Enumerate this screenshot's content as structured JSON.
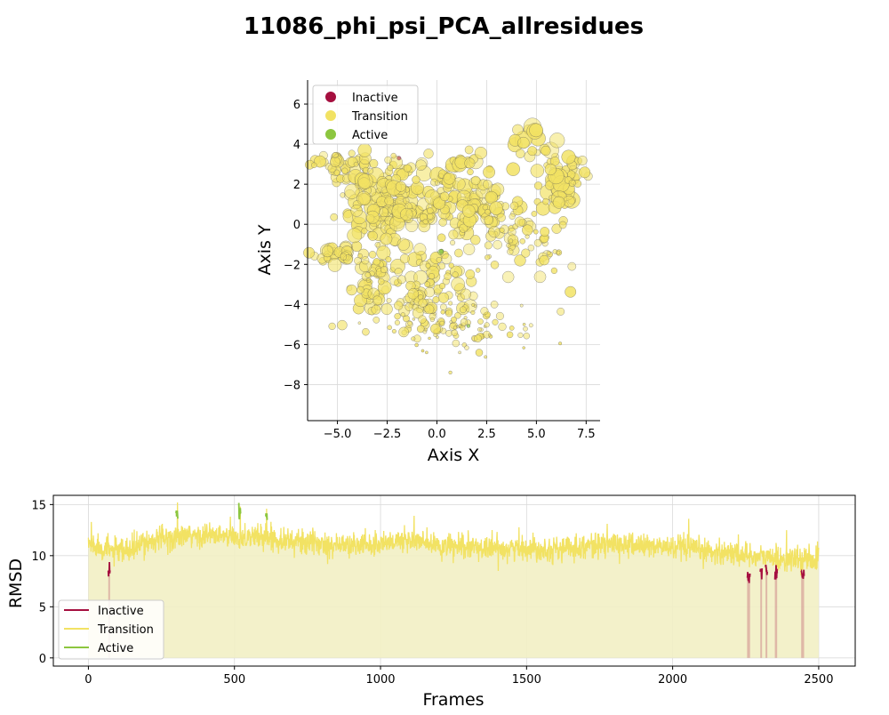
{
  "title": "11086_phi_psi_PCA_allresidues",
  "colors": {
    "inactive": "#a50f3f",
    "transition": "#f2e263",
    "active": "#8cc63f",
    "fill": "#f2efc4"
  },
  "chart_data": [
    {
      "type": "scatter",
      "xlabel": "Axis X",
      "ylabel": "Axis Y",
      "xlim": [
        -6.5,
        8.2
      ],
      "ylim": [
        -9.8,
        7.2
      ],
      "xticks": [
        -5.0,
        -2.5,
        0.0,
        2.5,
        5.0,
        7.5
      ],
      "xtick_labels": [
        "−5.0",
        "−2.5",
        "0.0",
        "2.5",
        "5.0",
        "7.5"
      ],
      "yticks": [
        -8,
        -6,
        -4,
        -2,
        0,
        2,
        4,
        6
      ],
      "ytick_labels": [
        "−8",
        "−6",
        "−4",
        "−2",
        "0",
        "2",
        "4",
        "6"
      ],
      "grid": true,
      "legend": "top-left",
      "legend_entries": [
        "Inactive",
        "Transition",
        "Active"
      ],
      "clusters": [
        {
          "label": "Transition",
          "cx": -4.8,
          "cy": 3.0,
          "sx": 0.8,
          "sy": 0.35,
          "n": 40,
          "size": 7
        },
        {
          "label": "Transition",
          "cx": -3.0,
          "cy": 1.2,
          "sx": 1.0,
          "sy": 1.0,
          "n": 90,
          "size": 8
        },
        {
          "label": "Transition",
          "cx": -1.5,
          "cy": 0.5,
          "sx": 1.2,
          "sy": 1.3,
          "n": 90,
          "size": 8
        },
        {
          "label": "Transition",
          "cx": -5.2,
          "cy": -1.4,
          "sx": 0.6,
          "sy": 0.3,
          "n": 30,
          "size": 7
        },
        {
          "label": "Transition",
          "cx": -3.4,
          "cy": -3.0,
          "sx": 0.6,
          "sy": 0.8,
          "n": 55,
          "size": 7
        },
        {
          "label": "Transition",
          "cx": 0.5,
          "cy": 1.8,
          "sx": 1.0,
          "sy": 1.0,
          "n": 70,
          "size": 8
        },
        {
          "label": "Transition",
          "cx": 2.2,
          "cy": 1.0,
          "sx": 1.0,
          "sy": 1.2,
          "n": 60,
          "size": 7
        },
        {
          "label": "Transition",
          "cx": 3.6,
          "cy": -0.3,
          "sx": 0.8,
          "sy": 0.8,
          "n": 40,
          "size": 6
        },
        {
          "label": "Transition",
          "cx": 6.2,
          "cy": 2.3,
          "sx": 0.6,
          "sy": 0.8,
          "n": 60,
          "size": 9
        },
        {
          "label": "Transition",
          "cx": 4.7,
          "cy": 4.0,
          "sx": 0.4,
          "sy": 0.5,
          "n": 15,
          "size": 9
        },
        {
          "label": "Transition",
          "cx": 5.5,
          "cy": -1.2,
          "sx": 0.6,
          "sy": 1.0,
          "n": 25,
          "size": 6
        },
        {
          "label": "Transition",
          "cx": 0.0,
          "cy": -2.8,
          "sx": 1.0,
          "sy": 1.0,
          "n": 60,
          "size": 7
        },
        {
          "label": "Transition",
          "cx": 1.5,
          "cy": -5.2,
          "sx": 1.8,
          "sy": 0.7,
          "n": 90,
          "size": 4
        },
        {
          "label": "Transition",
          "cx": -1.0,
          "cy": -4.4,
          "sx": 0.8,
          "sy": 0.6,
          "n": 35,
          "size": 6
        },
        {
          "label": "Active",
          "cx": 0.2,
          "cy": -1.4,
          "sx": 0.05,
          "sy": 0.05,
          "n": 2,
          "size": 4
        },
        {
          "label": "Active",
          "cx": 1.6,
          "cy": -5.1,
          "sx": 0.05,
          "sy": 0.05,
          "n": 1,
          "size": 3
        },
        {
          "label": "Inactive",
          "cx": -1.8,
          "cy": 3.3,
          "sx": 0.05,
          "sy": 0.05,
          "n": 1,
          "size": 3
        }
      ]
    },
    {
      "type": "line",
      "xlabel": "Frames",
      "ylabel": "RMSD",
      "xlim": [
        -120,
        2625
      ],
      "ylim": [
        -0.8,
        15.9
      ],
      "xticks": [
        0,
        500,
        1000,
        1500,
        2000,
        2500
      ],
      "xtick_labels": [
        "0",
        "500",
        "1000",
        "1500",
        "2000",
        "2500"
      ],
      "yticks": [
        0,
        5,
        10,
        15
      ],
      "ytick_labels": [
        "0",
        "5",
        "10",
        "15"
      ],
      "grid": true,
      "legend": "bottom-left",
      "legend_entries": [
        "Inactive",
        "Transition",
        "Active"
      ],
      "n_frames": 2500,
      "baseline_profile": [
        [
          0,
          11.2
        ],
        [
          50,
          10.8
        ],
        [
          100,
          10.3
        ],
        [
          150,
          10.6
        ],
        [
          200,
          11.4
        ],
        [
          300,
          11.8
        ],
        [
          400,
          12.0
        ],
        [
          500,
          11.8
        ],
        [
          600,
          11.9
        ],
        [
          700,
          11.4
        ],
        [
          800,
          11.2
        ],
        [
          900,
          11.0
        ],
        [
          1000,
          11.2
        ],
        [
          1100,
          11.6
        ],
        [
          1200,
          10.9
        ],
        [
          1300,
          10.8
        ],
        [
          1400,
          10.7
        ],
        [
          1500,
          10.8
        ],
        [
          1600,
          10.6
        ],
        [
          1700,
          11.0
        ],
        [
          1800,
          11.1
        ],
        [
          1900,
          11.0
        ],
        [
          2000,
          10.8
        ],
        [
          2100,
          10.5
        ],
        [
          2200,
          10.3
        ],
        [
          2300,
          9.9
        ],
        [
          2400,
          9.6
        ],
        [
          2500,
          9.7
        ]
      ],
      "noise_amplitude": 0.6,
      "spikes": [
        {
          "frame": 10,
          "value": 13.3
        },
        {
          "frame": 305,
          "value": 15.2
        },
        {
          "frame": 520,
          "value": 14.8
        },
        {
          "frame": 610,
          "value": 14.6
        },
        {
          "frame": 1115,
          "value": 13.9
        },
        {
          "frame": 2055,
          "value": 13.6
        },
        {
          "frame": 2390,
          "value": 12.5
        }
      ],
      "segments": [
        {
          "label": "Active",
          "start": 300,
          "end": 306,
          "value": 14.2
        },
        {
          "label": "Active",
          "start": 515,
          "end": 521,
          "value": 14.2
        },
        {
          "label": "Active",
          "start": 606,
          "end": 612,
          "value": 14.0
        },
        {
          "label": "Inactive",
          "start": 68,
          "end": 74,
          "value": 8.5
        },
        {
          "label": "Inactive",
          "start": 2255,
          "end": 2265,
          "value": 8.0
        },
        {
          "label": "Inactive",
          "start": 2300,
          "end": 2306,
          "value": 8.5
        },
        {
          "label": "Inactive",
          "start": 2318,
          "end": 2324,
          "value": 8.8
        },
        {
          "label": "Inactive",
          "start": 2350,
          "end": 2358,
          "value": 8.2
        },
        {
          "label": "Inactive",
          "start": 2440,
          "end": 2450,
          "value": 8.3
        }
      ]
    }
  ]
}
